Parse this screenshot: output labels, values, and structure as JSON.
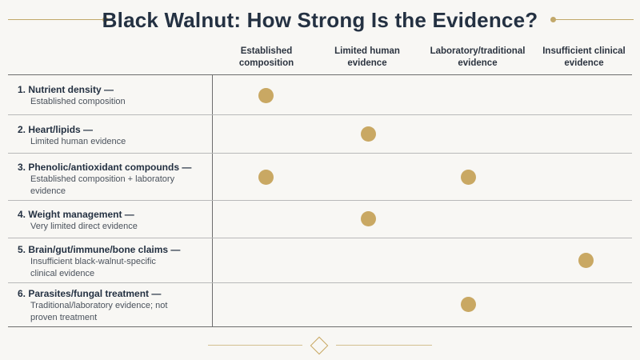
{
  "title": "Black Walnut: How Strong Is the Evidence?",
  "columns": [
    "Established composition",
    "Limited human evidence",
    "Laboratory/traditional evidence",
    "Insufficient clinical evidence"
  ],
  "rows": [
    {
      "title": "1.  Nutrient density —",
      "desc": "Established composition",
      "evidence": [
        "Established composition"
      ]
    },
    {
      "title": "2.  Heart/lipids —",
      "desc": "Limited human evidence",
      "evidence": [
        "Limited human evidence"
      ]
    },
    {
      "title": "3.  Phenolic/antioxidant compounds —",
      "desc": "Established composition + laboratory evidence",
      "evidence": [
        "Established composition",
        "Laboratory/traditional evidence"
      ]
    },
    {
      "title": "4.  Weight management —",
      "desc": "Very limited direct evidence",
      "evidence": [
        "Limited human evidence"
      ]
    },
    {
      "title": "5.  Brain/gut/immune/bone claims —",
      "desc": "Insufficient black-walnut-specific clinical evidence",
      "evidence": [
        "Insufficient clinical evidence"
      ]
    },
    {
      "title": "6.  Parasites/fungal treatment —",
      "desc": "Traditional/laboratory evidence; not proven treatment",
      "evidence": [
        "Laboratory/traditional evidence"
      ]
    }
  ],
  "colors": {
    "accent": "#c9a863",
    "title": "#243142"
  }
}
